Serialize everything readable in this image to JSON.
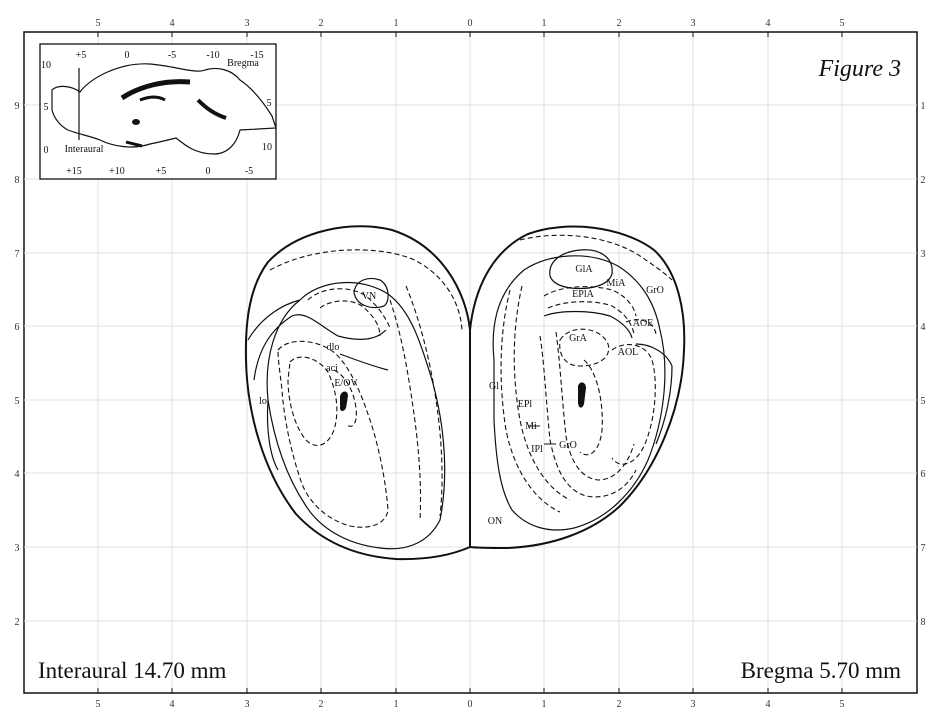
{
  "figure": {
    "title": "Figure 3"
  },
  "coordinates": {
    "interaural": "Interaural 14.70 mm",
    "bregma": "Bregma 5.70 mm"
  },
  "scales": {
    "top_x": [
      "5",
      "4",
      "3",
      "2",
      "1",
      "0",
      "1",
      "2",
      "3",
      "4",
      "5"
    ],
    "bottom_x": [
      "5",
      "4",
      "3",
      "2",
      "1",
      "0",
      "1",
      "2",
      "3",
      "4",
      "5"
    ],
    "left_y": [
      "9",
      "8",
      "7",
      "6",
      "5",
      "4",
      "3",
      "2"
    ],
    "right_y": [
      "1",
      "2",
      "3",
      "4",
      "5",
      "6",
      "7",
      "8"
    ]
  },
  "inset": {
    "top_ticks": [
      "+5",
      "0",
      "-5",
      "-10",
      "-15"
    ],
    "bottom_ticks": [
      "+15",
      "+10",
      "+5",
      "0",
      "-5"
    ],
    "left_ticks": [
      "10",
      "5",
      "0"
    ],
    "right_ticks": [
      "5",
      "10"
    ],
    "bregma_label": "Bregma",
    "interaural_label": "Interaural"
  },
  "labels": {
    "VN": "VN",
    "dlo": "dlo",
    "aci": "aci",
    "E_OV": "E/OV",
    "lo": "lo",
    "GlA": "GlA",
    "MiA": "MiA",
    "EPlA": "EPlA",
    "GrO_r": "GrO",
    "AOE": "AOE",
    "GrA": "GrA",
    "AOL": "AOL",
    "Gl": "Gl",
    "EPl": "EPl",
    "Mi": "Mi",
    "IPl": "IPl",
    "GrO": "GrO",
    "ON": "ON"
  },
  "colors": {
    "ink": "#111111",
    "grid": "#e2e2e2",
    "background": "#ffffff"
  }
}
